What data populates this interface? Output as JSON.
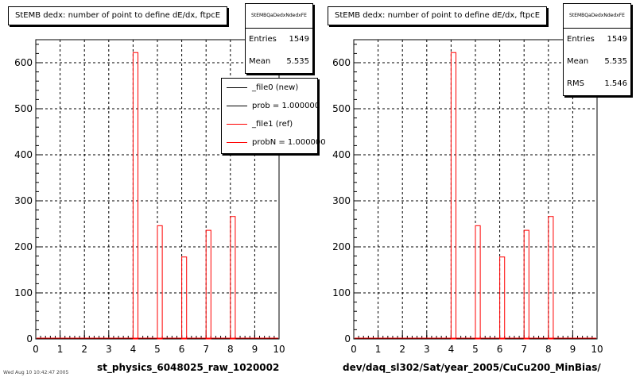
{
  "colors": {
    "ref": "#ff0000",
    "new": "#000000",
    "grid": "#000000"
  },
  "panels": [
    {
      "title": "StEMB dedx: number of point to define dE/dx, ftpcE",
      "stats": {
        "name": "StEMBQaDedxNdedxFE",
        "rows": [
          {
            "label": "Entries",
            "value": "1549"
          },
          {
            "label": "Mean",
            "value": "5.535"
          }
        ]
      },
      "legend": [
        {
          "label": "_file0 (new)",
          "color": "#000000"
        },
        {
          "label": "prob = 1.000000",
          "color": "#000000"
        },
        {
          "label": "_file1 (ref)",
          "color": "#ff0000"
        },
        {
          "label": "probN = 1.000000",
          "color": "#ff0000"
        }
      ],
      "xlabel_text": "st_physics_6048025_raw_1020002"
    },
    {
      "title": "StEMB dedx: number of point to define dE/dx, ftpcE",
      "stats": {
        "name": "StEMBQaDedxNdedxFE",
        "rows": [
          {
            "label": "Entries",
            "value": "1549"
          },
          {
            "label": "Mean",
            "value": "5.535"
          },
          {
            "label": "RMS",
            "value": "1.546"
          }
        ]
      },
      "xlabel_text": "dev/daq_sl302/Sat/year_2005/CuCu200_MinBias/"
    }
  ],
  "footer": "Wed Aug 10 10:42:47 2005",
  "chart_data": [
    {
      "type": "bar",
      "title": "StEMB dedx: number of point to define dE/dx, ftpcE",
      "xlabel": "st_physics_6048025_raw_1020002",
      "ylabel": "",
      "xlim": [
        0,
        10
      ],
      "ylim": [
        0,
        650
      ],
      "xticks": [
        0,
        1,
        2,
        3,
        4,
        5,
        6,
        7,
        8,
        9,
        10
      ],
      "yticks": [
        0,
        100,
        200,
        300,
        400,
        500,
        600
      ],
      "grid": true,
      "bins": [
        4.0,
        5.0,
        6.0,
        7.0,
        8.0
      ],
      "bin_width": 0.2,
      "series": [
        {
          "name": "_file1 (ref)",
          "color": "#ff0000",
          "values": [
            622,
            246,
            178,
            236,
            266
          ]
        },
        {
          "name": "_file0 (new)",
          "color": "#000000",
          "values": [
            622,
            246,
            178,
            236,
            266
          ]
        }
      ]
    },
    {
      "type": "bar",
      "title": "StEMB dedx: number of point to define dE/dx, ftpcE",
      "xlabel": "dev/daq_sl302/Sat/year_2005/CuCu200_MinBias/",
      "ylabel": "",
      "xlim": [
        0,
        10
      ],
      "ylim": [
        0,
        650
      ],
      "xticks": [
        0,
        1,
        2,
        3,
        4,
        5,
        6,
        7,
        8,
        9,
        10
      ],
      "yticks": [
        0,
        100,
        200,
        300,
        400,
        500,
        600
      ],
      "grid": true,
      "bins": [
        4.0,
        5.0,
        6.0,
        7.0,
        8.0
      ],
      "bin_width": 0.2,
      "series": [
        {
          "name": "",
          "color": "#ff0000",
          "values": [
            622,
            246,
            178,
            236,
            266
          ]
        }
      ]
    }
  ]
}
